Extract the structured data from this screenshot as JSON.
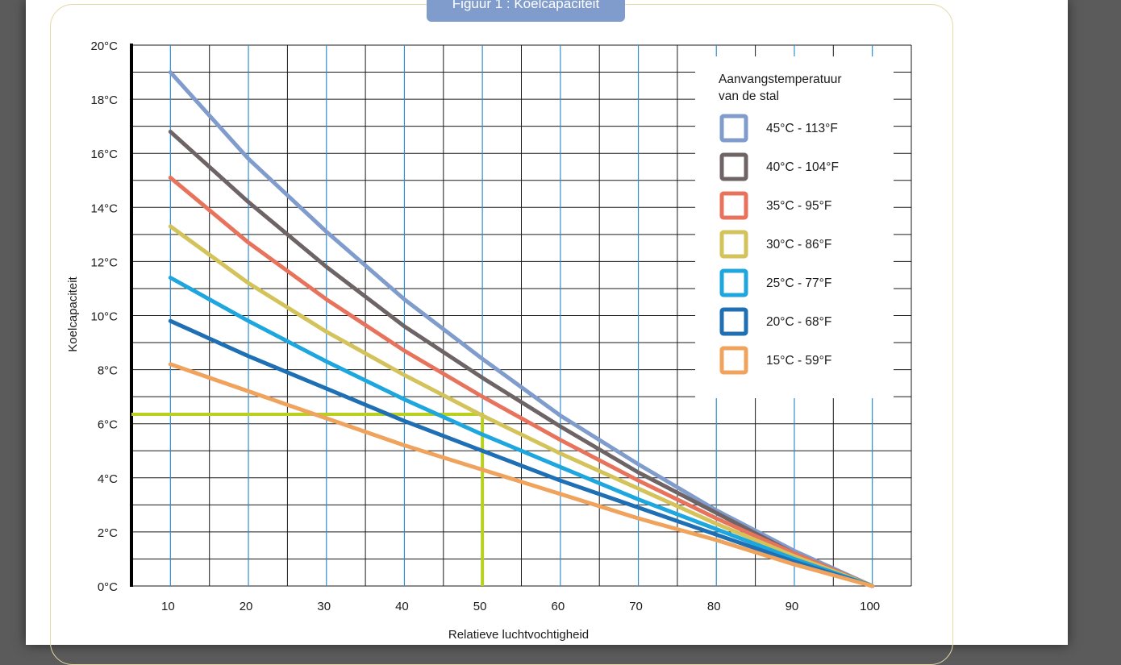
{
  "figure_title": "Figuur 1 : Koelcapaciteit",
  "chart_data": {
    "type": "line",
    "xlabel": "Relatieve luchtvochtigheid",
    "ylabel": "Koelcapaciteit",
    "xlim": [
      5,
      105
    ],
    "ylim": [
      0,
      20
    ],
    "x_ticks": [
      "10",
      "20",
      "30",
      "40",
      "50",
      "60",
      "70",
      "80",
      "90",
      "100"
    ],
    "y_ticks": [
      "0°C",
      "2°C",
      "4°C",
      "6°C",
      "8°C",
      "10°C",
      "12°C",
      "14°C",
      "16°C",
      "18°C",
      "20°C"
    ],
    "grid": true,
    "legend_title": [
      "Aanvangstemperatuur",
      "van de stal"
    ],
    "legend_position": "top-right",
    "series": [
      {
        "name": "45°C - 113°F",
        "color": "#7f9ccc",
        "x": [
          10,
          20,
          30,
          40,
          50,
          60,
          70,
          80,
          90,
          100
        ],
        "y": [
          19.0,
          15.8,
          13.1,
          10.6,
          8.4,
          6.3,
          4.5,
          2.8,
          1.3,
          0
        ]
      },
      {
        "name": "40°C - 104°F",
        "color": "#6e6466",
        "x": [
          10,
          20,
          30,
          40,
          50,
          60,
          70,
          80,
          90,
          100
        ],
        "y": [
          16.8,
          14.2,
          11.8,
          9.6,
          7.7,
          5.9,
          4.2,
          2.7,
          1.2,
          0
        ]
      },
      {
        "name": "35°C - 95°F",
        "color": "#e8735c",
        "x": [
          10,
          20,
          30,
          40,
          50,
          60,
          70,
          80,
          90,
          100
        ],
        "y": [
          15.1,
          12.7,
          10.6,
          8.7,
          7.0,
          5.4,
          3.9,
          2.5,
          1.2,
          0
        ]
      },
      {
        "name": "30°C - 86°F",
        "color": "#d3c35a",
        "x": [
          10,
          20,
          30,
          40,
          50,
          60,
          70,
          80,
          90,
          100
        ],
        "y": [
          13.3,
          11.2,
          9.4,
          7.8,
          6.3,
          4.9,
          3.6,
          2.3,
          1.1,
          0
        ]
      },
      {
        "name": "25°C - 77°F",
        "color": "#1ea6de",
        "x": [
          10,
          20,
          30,
          40,
          50,
          60,
          70,
          80,
          90,
          100
        ],
        "y": [
          11.4,
          9.8,
          8.3,
          6.9,
          5.6,
          4.4,
          3.2,
          2.1,
          1.0,
          0
        ]
      },
      {
        "name": "20°C - 68°F",
        "color": "#1e6fb3",
        "x": [
          10,
          20,
          30,
          40,
          50,
          60,
          70,
          80,
          90,
          100
        ],
        "y": [
          9.8,
          8.5,
          7.3,
          6.1,
          5.0,
          3.9,
          2.9,
          1.9,
          0.9,
          0
        ]
      },
      {
        "name": "15°C - 59°F",
        "color": "#f0a35c",
        "x": [
          10,
          20,
          30,
          40,
          50,
          60,
          70,
          80,
          90,
          100
        ],
        "y": [
          8.2,
          7.2,
          6.2,
          5.2,
          4.3,
          3.4,
          2.5,
          1.7,
          0.8,
          0
        ]
      }
    ],
    "guide_line": {
      "color": "#b9d01e",
      "x": 50,
      "y": 6.35
    }
  }
}
